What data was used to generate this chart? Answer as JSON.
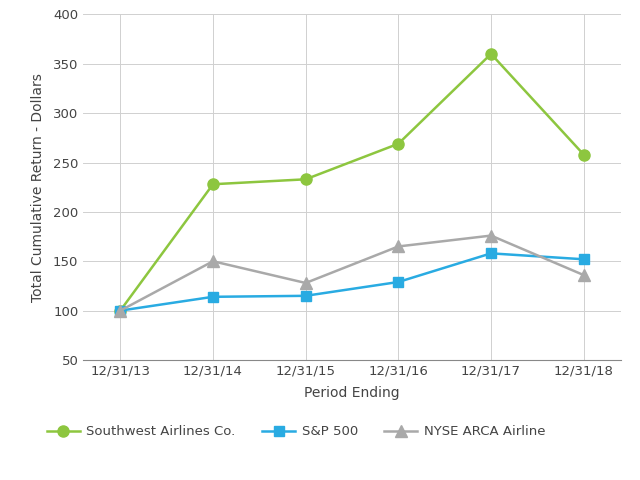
{
  "x_labels": [
    "12/31/13",
    "12/31/14",
    "12/31/15",
    "12/31/16",
    "12/31/17",
    "12/31/18"
  ],
  "southwest": [
    100,
    228,
    233,
    269,
    360,
    258
  ],
  "sp500": [
    100,
    114,
    115,
    129,
    158,
    152
  ],
  "nyse": [
    100,
    150,
    128,
    165,
    176,
    136
  ],
  "southwest_color": "#8dc63f",
  "sp500_color": "#29abe2",
  "nyse_color": "#a9a9a9",
  "xlabel": "Period Ending",
  "ylabel": "Total Cumulative Return - Dollars",
  "ylim_min": 50,
  "ylim_max": 400,
  "yticks": [
    50,
    100,
    150,
    200,
    250,
    300,
    350,
    400
  ],
  "southwest_label": "Southwest Airlines Co.",
  "sp500_label": "S&P 500",
  "nyse_label": "NYSE ARCA Airline",
  "bg_color": "#ffffff",
  "grid_color": "#d0d0d0",
  "legend_fontsize": 9.5,
  "axis_label_fontsize": 10,
  "tick_fontsize": 9.5,
  "text_color": "#444444",
  "line_width": 1.8,
  "sw_markersize": 8,
  "sp_markersize": 7,
  "nyse_markersize": 8
}
